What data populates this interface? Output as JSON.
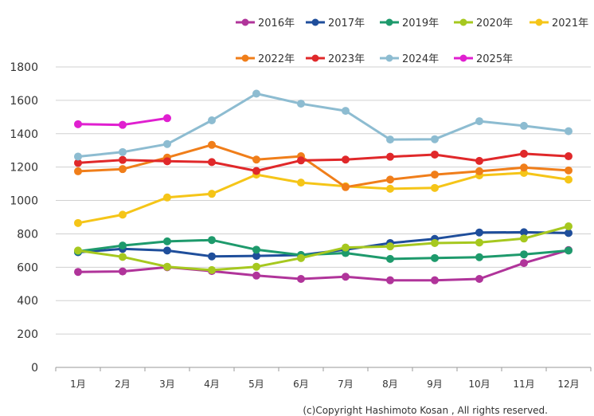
{
  "chart_data": {
    "type": "line",
    "title": "",
    "xlabel": "",
    "ylabel": "",
    "ylim": [
      0,
      1800
    ],
    "yticks": [
      0,
      200,
      400,
      600,
      800,
      1000,
      1200,
      1400,
      1600,
      1800
    ],
    "categories": [
      "1月",
      "2月",
      "3月",
      "4月",
      "5月",
      "6月",
      "7月",
      "8月",
      "9月",
      "10月",
      "11月",
      "12月"
    ],
    "grid": true,
    "legend_position": "top",
    "series": [
      {
        "name": "2016年",
        "color": "#b0349a",
        "values": [
          572,
          575,
          600,
          577,
          550,
          530,
          543,
          522,
          522,
          530,
          625,
          703
        ]
      },
      {
        "name": "2017年",
        "color": "#1f4e9b",
        "values": [
          690,
          710,
          700,
          665,
          668,
          673,
          705,
          745,
          770,
          808,
          810,
          805
        ]
      },
      {
        "name": "2019年",
        "color": "#1e9a6c",
        "values": [
          695,
          730,
          755,
          763,
          705,
          673,
          685,
          650,
          655,
          660,
          677,
          700
        ]
      },
      {
        "name": "2020年",
        "color": "#a6c81f",
        "values": [
          700,
          662,
          603,
          583,
          603,
          655,
          718,
          725,
          745,
          748,
          772,
          845
        ]
      },
      {
        "name": "2021年",
        "color": "#f5c518",
        "values": [
          865,
          915,
          1018,
          1040,
          1155,
          1107,
          1085,
          1070,
          1075,
          1150,
          1165,
          1125
        ]
      },
      {
        "name": "2022年",
        "color": "#f07e1a",
        "values": [
          1175,
          1188,
          1257,
          1333,
          1245,
          1265,
          1080,
          1125,
          1155,
          1175,
          1197,
          1180
        ]
      },
      {
        "name": "2023年",
        "color": "#e0282a",
        "values": [
          1225,
          1243,
          1235,
          1230,
          1177,
          1240,
          1245,
          1262,
          1275,
          1237,
          1280,
          1265
        ]
      },
      {
        "name": "2024年",
        "color": "#8dbcd1",
        "values": [
          1263,
          1290,
          1338,
          1480,
          1640,
          1580,
          1537,
          1365,
          1367,
          1475,
          1447,
          1415
        ]
      },
      {
        "name": "2025年",
        "color": "#e01fd0",
        "values": [
          1457,
          1453,
          1493,
          null,
          null,
          null,
          null,
          null,
          null,
          null,
          null,
          null
        ]
      }
    ]
  },
  "footer": {
    "copyright": "(c)Copyright Hashimoto Kosan , All rights reserved."
  }
}
